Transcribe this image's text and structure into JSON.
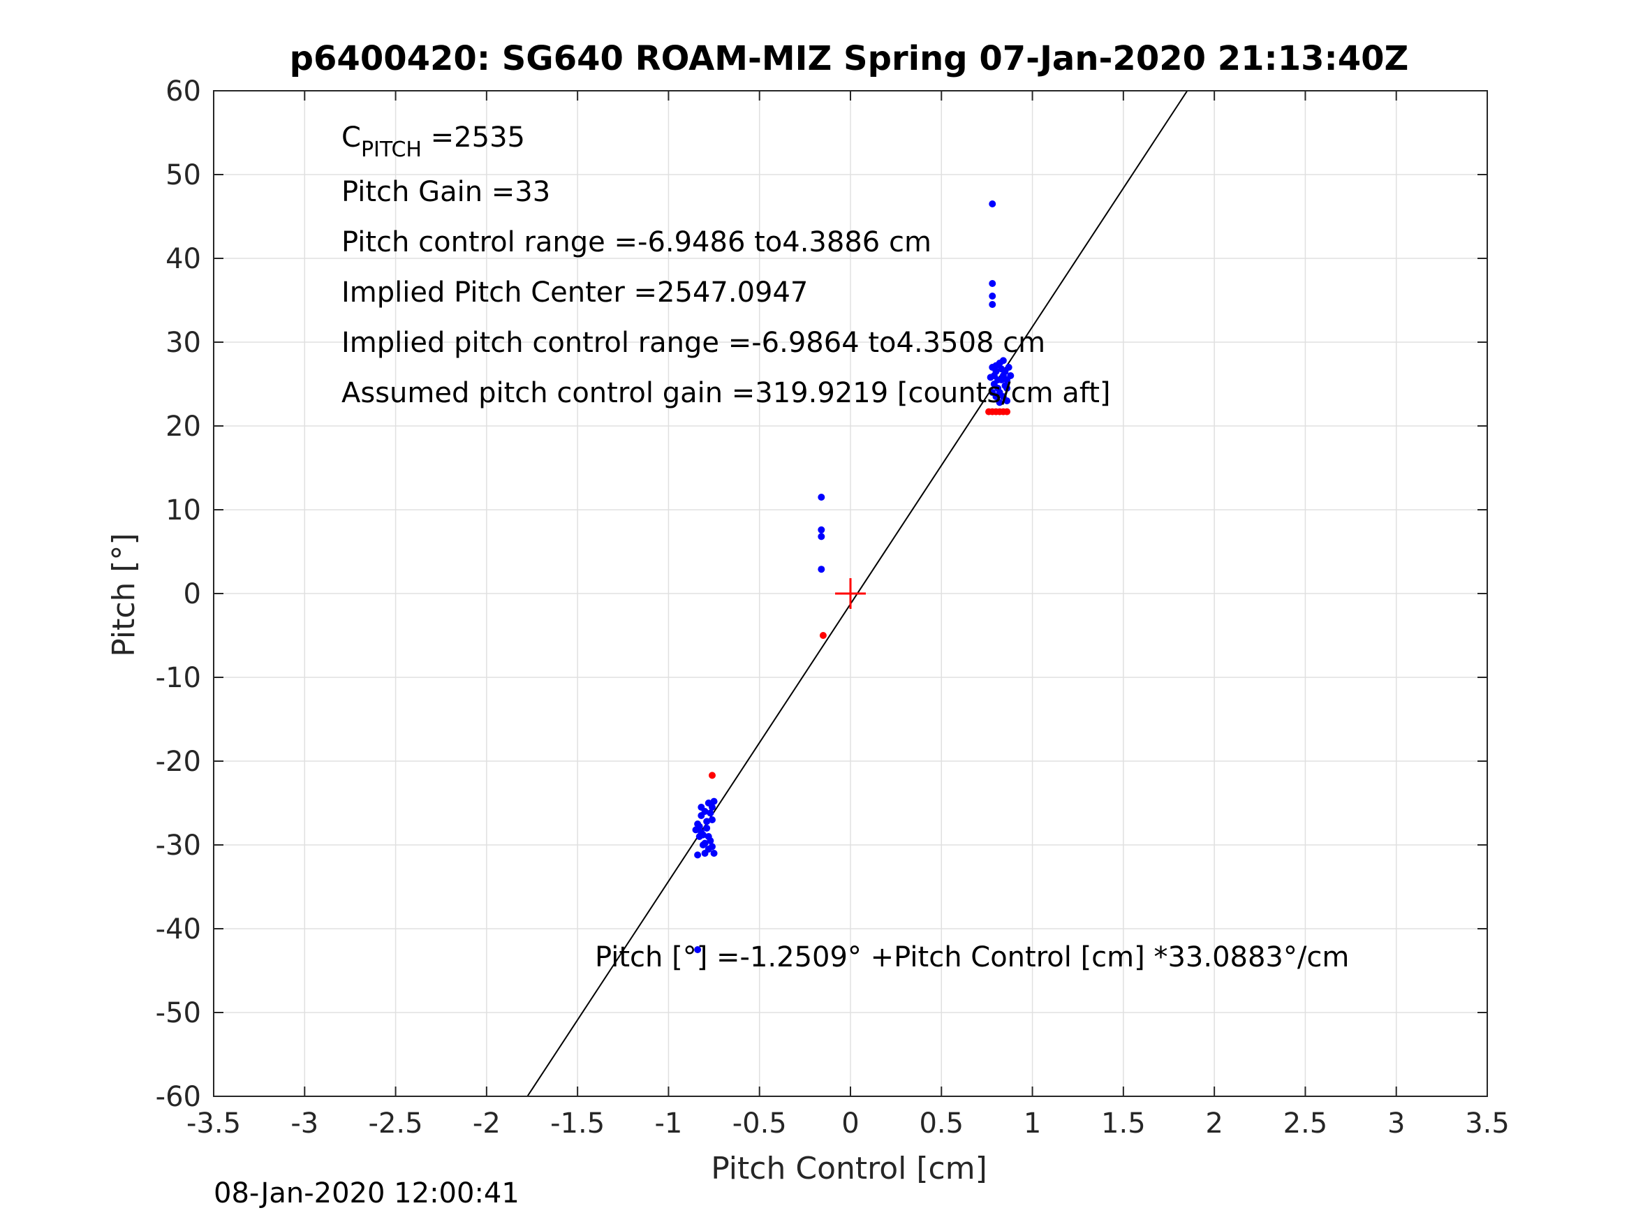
{
  "chart_data": {
    "type": "scatter",
    "title": "p6400420: SG640 ROAM-MIZ Spring 07-Jan-2020 21:13:40Z",
    "xlabel": "Pitch Control [cm]",
    "ylabel": "Pitch [°]",
    "xlim": [
      -3.5,
      3.5
    ],
    "ylim": [
      -60,
      60
    ],
    "xticks": [
      -3.5,
      -3,
      -2.5,
      -2,
      -1.5,
      -1,
      -0.5,
      0,
      0.5,
      1,
      1.5,
      2,
      2.5,
      3,
      3.5
    ],
    "yticks": [
      -60,
      -50,
      -40,
      -30,
      -20,
      -10,
      0,
      10,
      20,
      30,
      40,
      50,
      60
    ],
    "xtick_labels": [
      "-3.5",
      "-3",
      "-2.5",
      "-2",
      "-1.5",
      "-1",
      "-0.5",
      "0",
      "0.5",
      "1",
      "1.5",
      "2",
      "2.5",
      "3",
      "3.5"
    ],
    "ytick_labels": [
      "-60",
      "-50",
      "-40",
      "-30",
      "-20",
      "-10",
      "0",
      "10",
      "20",
      "30",
      "40",
      "50",
      "60"
    ],
    "grid": true,
    "colors": {
      "blue": "#0000ff",
      "red": "#ff0000",
      "fit": "#000000",
      "grid": "#e0e0e0"
    },
    "series": [
      {
        "color": "blue",
        "points": [
          [
            0.78,
            46.5
          ],
          [
            0.78,
            37.0
          ],
          [
            0.78,
            35.5
          ],
          [
            0.78,
            34.5
          ],
          [
            0.78,
            27.0
          ],
          [
            0.8,
            26.5
          ],
          [
            0.82,
            27.5
          ],
          [
            0.84,
            26.0
          ],
          [
            0.86,
            25.5
          ],
          [
            0.79,
            25.0
          ],
          [
            0.81,
            24.5
          ],
          [
            0.83,
            25.5
          ],
          [
            0.85,
            26.5
          ],
          [
            0.87,
            27.0
          ],
          [
            0.78,
            24.0
          ],
          [
            0.8,
            23.5
          ],
          [
            0.82,
            24.0
          ],
          [
            0.84,
            23.5
          ],
          [
            0.86,
            24.5
          ],
          [
            0.79,
            26.0
          ],
          [
            0.81,
            25.5
          ],
          [
            0.83,
            26.8
          ],
          [
            0.85,
            24.8
          ],
          [
            0.88,
            26.0
          ],
          [
            0.77,
            25.8
          ],
          [
            0.8,
            27.2
          ],
          [
            0.82,
            22.8
          ],
          [
            0.84,
            27.8
          ],
          [
            0.86,
            23.0
          ],
          [
            -0.16,
            11.5
          ],
          [
            -0.16,
            7.6
          ],
          [
            -0.16,
            6.8
          ],
          [
            -0.16,
            2.9
          ],
          [
            -0.84,
            -27.5
          ],
          [
            -0.82,
            -28.5
          ],
          [
            -0.8,
            -26.0
          ],
          [
            -0.78,
            -25.0
          ],
          [
            -0.76,
            -27.0
          ],
          [
            -0.83,
            -29.0
          ],
          [
            -0.81,
            -30.0
          ],
          [
            -0.79,
            -28.0
          ],
          [
            -0.77,
            -29.5
          ],
          [
            -0.75,
            -31.0
          ],
          [
            -0.84,
            -31.2
          ],
          [
            -0.82,
            -26.5
          ],
          [
            -0.8,
            -29.8
          ],
          [
            -0.78,
            -30.5
          ],
          [
            -0.76,
            -25.5
          ],
          [
            -0.83,
            -27.8
          ],
          [
            -0.81,
            -28.8
          ],
          [
            -0.79,
            -27.2
          ],
          [
            -0.77,
            -26.2
          ],
          [
            -0.75,
            -24.8
          ],
          [
            -0.82,
            -25.5
          ],
          [
            -0.8,
            -31.0
          ],
          [
            -0.78,
            -29.0
          ],
          [
            -0.76,
            -30.2
          ],
          [
            -0.85,
            -28.2
          ],
          [
            -0.84,
            -42.5
          ]
        ]
      },
      {
        "color": "red",
        "points": [
          [
            0.76,
            21.7
          ],
          [
            0.78,
            21.7
          ],
          [
            0.8,
            21.7
          ],
          [
            0.82,
            21.7
          ],
          [
            0.84,
            21.7
          ],
          [
            0.86,
            21.7
          ],
          [
            -0.15,
            -5.0
          ],
          [
            -0.76,
            -21.7
          ]
        ]
      }
    ],
    "fit_line": {
      "intercept": -1.2509,
      "slope": 33.0883
    },
    "center_marker": {
      "x": 0,
      "y": 0,
      "symbol": "+",
      "color": "red"
    },
    "annotations": {
      "c_pitch_main": "C",
      "c_pitch_sub": "PITCH",
      "c_pitch_value": " =2535",
      "pitch_gain": "Pitch Gain =33",
      "pitch_control_range": "Pitch control range =-6.9486 to4.3886 cm",
      "implied_pitch_center": "Implied Pitch Center =2547.0947",
      "implied_pitch_control_range": "Implied pitch control range =-6.9864 to4.3508 cm",
      "assumed_gain": "Assumed pitch control gain =319.9219 [counts/cm aft]",
      "fit_equation": "Pitch [°] =-1.2509° +Pitch Control [cm] *33.0883°/cm"
    }
  },
  "footer_timestamp": "08-Jan-2020 12:00:41"
}
